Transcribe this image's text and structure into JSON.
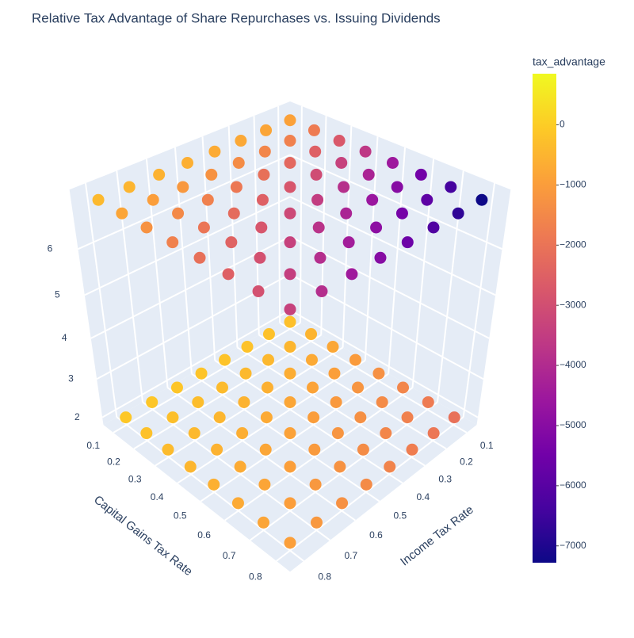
{
  "chart_data": {
    "type": "scatter3d",
    "title": "Relative Tax Advantage of Share Repurchases vs. Issuing Dividends",
    "x_title": "Income Tax Rate",
    "y_title": "Capital Gains Tax Rate",
    "x": [
      0.1,
      0.2,
      0.3,
      0.4,
      0.5,
      0.6,
      0.7,
      0.8
    ],
    "y": [
      0.1,
      0.2,
      0.3,
      0.4,
      0.5,
      0.6,
      0.7,
      0.8
    ],
    "z": [
      2,
      7
    ],
    "values": [
      [
        [
          -260,
          -240,
          -220,
          -200,
          -180,
          -160,
          -140,
          -120
        ],
        [
          -520,
          -480,
          -440,
          -400,
          -360,
          -320,
          -280,
          -240
        ],
        [
          -780,
          -720,
          -660,
          -600,
          -540,
          -480,
          -420,
          -360
        ],
        [
          -1040,
          -960,
          -880,
          -800,
          -720,
          -640,
          -560,
          -480
        ],
        [
          -1300,
          -1200,
          -1100,
          -1000,
          -900,
          -800,
          -700,
          -600
        ],
        [
          -1560,
          -1440,
          -1320,
          -1200,
          -1080,
          -960,
          -840,
          -720
        ],
        [
          -1820,
          -1680,
          -1540,
          -1400,
          -1260,
          -1120,
          -980,
          -840
        ],
        [
          -2080,
          -1920,
          -1760,
          -1600,
          -1440,
          -1280,
          -1120,
          -960
        ]
      ],
      [
        [
          -910,
          -840,
          -770,
          -700,
          -630,
          -560,
          -490,
          -420
        ],
        [
          -1820,
          -1680,
          -1540,
          -1400,
          -1260,
          -1120,
          -980,
          -840
        ],
        [
          -2730,
          -2520,
          -2310,
          -2100,
          -1890,
          -1680,
          -1470,
          -1260
        ],
        [
          -3640,
          -3360,
          -3080,
          -2800,
          -2520,
          -2240,
          -1960,
          -1680
        ],
        [
          -4550,
          -4200,
          -3850,
          -3500,
          -3150,
          -2800,
          -2450,
          -2100
        ],
        [
          -5460,
          -5040,
          -4620,
          -4200,
          -3780,
          -3360,
          -2940,
          -2520
        ],
        [
          -6370,
          -5880,
          -5390,
          -4900,
          -4410,
          -3920,
          -3430,
          -2940
        ],
        [
          -7280,
          -6720,
          -6160,
          -5600,
          -5040,
          -4480,
          -3920,
          -3360
        ]
      ]
    ],
    "xlim": [
      0.05,
      0.85
    ],
    "xticks": [
      0.1,
      0.2,
      0.3,
      0.4,
      0.5,
      0.6,
      0.7,
      0.8
    ],
    "ylim": [
      0.05,
      0.85
    ],
    "yticks": [
      0.1,
      0.2,
      0.3,
      0.4,
      0.5,
      0.6,
      0.7,
      0.8
    ],
    "zlim": [
      1.8,
      7.2
    ],
    "zticks": [
      2,
      3,
      4,
      5,
      6
    ],
    "colorbar_title": "tax_advantage",
    "clim": [
      -7280,
      850
    ],
    "colorbar_ticks": [
      0,
      {
        "value": -1000,
        "label": "−1000"
      },
      {
        "value": -2000,
        "label": "−2000"
      },
      {
        "value": -3000,
        "label": "−3000"
      },
      {
        "value": -4000,
        "label": "−4000"
      },
      {
        "value": -5000,
        "label": "−5000"
      },
      {
        "value": -6000,
        "label": "−6000"
      },
      {
        "value": -7000,
        "label": "−7000"
      }
    ],
    "colorscale": [
      "#0d0887",
      "#46039f",
      "#7201a8",
      "#9c179e",
      "#bd3786",
      "#d8576b",
      "#ed7953",
      "#fb9f3a",
      "#fdca26",
      "#f0f921"
    ]
  }
}
